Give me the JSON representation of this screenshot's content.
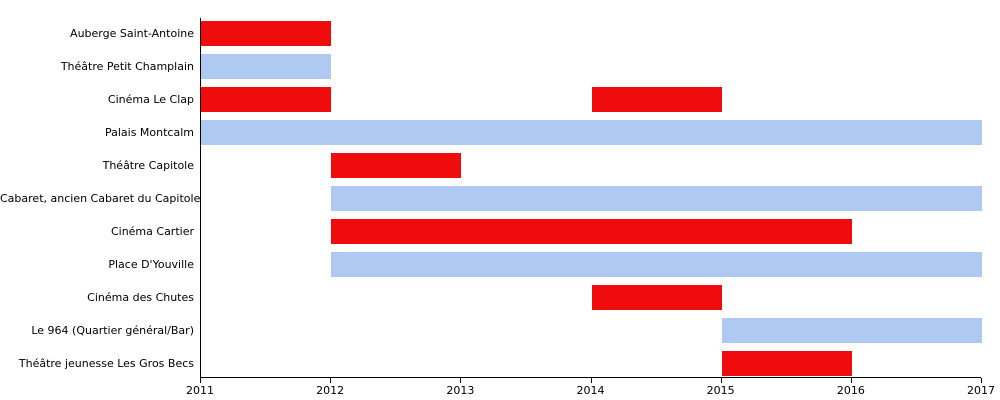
{
  "chart_data": {
    "type": "bar",
    "variant": "gantt-timeline",
    "title": "",
    "xlabel": "",
    "ylabel": "",
    "grid": false,
    "legend": false,
    "x_axis": {
      "min": 2011,
      "max": 2017,
      "ticks": [
        "2011",
        "2012",
        "2013",
        "2014",
        "2015",
        "2016",
        "2017"
      ]
    },
    "colors": {
      "red": "#f00c0c",
      "blue": "#aecaf2",
      "axis": "#000000"
    },
    "rows": [
      {
        "label": "Auberge Saint-Antoine",
        "bars": [
          {
            "start": 2011,
            "end": 2012,
            "color": "red"
          }
        ]
      },
      {
        "label": "Théâtre Petit Champlain",
        "bars": [
          {
            "start": 2011,
            "end": 2012,
            "color": "blue"
          }
        ]
      },
      {
        "label": "Cinéma Le Clap",
        "bars": [
          {
            "start": 2011,
            "end": 2012,
            "color": "red"
          },
          {
            "start": 2014,
            "end": 2015,
            "color": "red"
          }
        ]
      },
      {
        "label": "Palais Montcalm",
        "bars": [
          {
            "start": 2011,
            "end": 2017,
            "color": "blue"
          }
        ]
      },
      {
        "label": "Théâtre Capitole",
        "bars": [
          {
            "start": 2012,
            "end": 2013,
            "color": "red"
          }
        ]
      },
      {
        "label": "Cabaret, ancien Cabaret du Capitole",
        "bars": [
          {
            "start": 2012,
            "end": 2017,
            "color": "blue"
          }
        ]
      },
      {
        "label": "Cinéma Cartier",
        "bars": [
          {
            "start": 2012,
            "end": 2016,
            "color": "red"
          }
        ]
      },
      {
        "label": "Place D'Youville",
        "bars": [
          {
            "start": 2012,
            "end": 2017,
            "color": "blue"
          }
        ]
      },
      {
        "label": "Cinéma des Chutes",
        "bars": [
          {
            "start": 2014,
            "end": 2015,
            "color": "red"
          }
        ]
      },
      {
        "label": "Le 964 (Quartier général/Bar)",
        "bars": [
          {
            "start": 2015,
            "end": 2017,
            "color": "blue"
          }
        ]
      },
      {
        "label": "Théâtre jeunesse Les Gros Becs",
        "bars": [
          {
            "start": 2015,
            "end": 2016,
            "color": "red"
          }
        ]
      }
    ]
  }
}
